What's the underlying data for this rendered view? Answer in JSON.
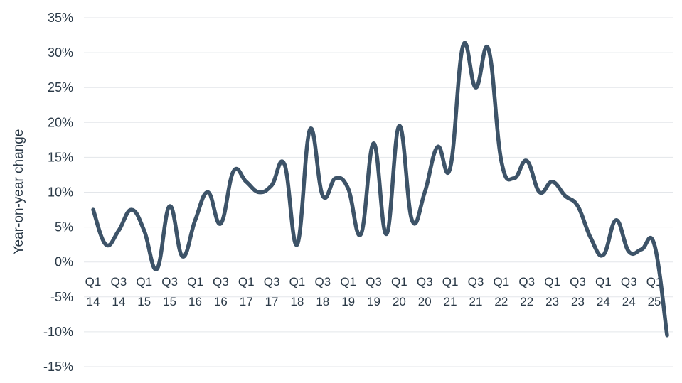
{
  "chart_data": {
    "type": "line",
    "ylabel": "Year-on-year change",
    "ylim": [
      -15,
      35
    ],
    "yticks": [
      35,
      30,
      25,
      20,
      15,
      10,
      5,
      0,
      -5,
      -10,
      -15
    ],
    "ytick_labels": [
      "35%",
      "30%",
      "25%",
      "20%",
      "15%",
      "10%",
      "5%",
      "0%",
      "-5%",
      "-10%",
      "-15%"
    ],
    "grid": true,
    "x_tick_labels": [
      [
        "Q1",
        "14"
      ],
      [
        "Q3",
        "14"
      ],
      [
        "Q1",
        "15"
      ],
      [
        "Q3",
        "15"
      ],
      [
        "Q1",
        "16"
      ],
      [
        "Q3",
        "16"
      ],
      [
        "Q1",
        "17"
      ],
      [
        "Q3",
        "17"
      ],
      [
        "Q1",
        "18"
      ],
      [
        "Q3",
        "18"
      ],
      [
        "Q1",
        "19"
      ],
      [
        "Q3",
        "19"
      ],
      [
        "Q1",
        "20"
      ],
      [
        "Q3",
        "20"
      ],
      [
        "Q1",
        "21"
      ],
      [
        "Q3",
        "21"
      ],
      [
        "Q1",
        "22"
      ],
      [
        "Q3",
        "22"
      ],
      [
        "Q1",
        "23"
      ],
      [
        "Q3",
        "23"
      ],
      [
        "Q1",
        "24"
      ],
      [
        "Q3",
        "24"
      ],
      [
        "Q1",
        "25"
      ]
    ],
    "x": [
      "Q1 14",
      "Q2 14",
      "Q3 14",
      "Q4 14",
      "Q1 15",
      "Q2 15",
      "Q3 15",
      "Q4 15",
      "Q1 16",
      "Q2 16",
      "Q3 16",
      "Q4 16",
      "Q1 17",
      "Q2 17",
      "Q3 17",
      "Q4 17",
      "Q1 18",
      "Q2 18",
      "Q3 18",
      "Q4 18",
      "Q1 19",
      "Q2 19",
      "Q3 19",
      "Q4 19",
      "Q1 20",
      "Q2 20",
      "Q3 20",
      "Q4 20",
      "Q1 21",
      "Q2 21",
      "Q3 21",
      "Q4 21",
      "Q1 22",
      "Q2 22",
      "Q3 22",
      "Q4 22",
      "Q1 23",
      "Q2 23",
      "Q3 23",
      "Q4 23",
      "Q1 24",
      "Q2 24",
      "Q3 24",
      "Q4 24",
      "Q1 25",
      "Q2 25"
    ],
    "series": [
      {
        "color": "#3d5368",
        "values": [
          7.5,
          2.5,
          4.5,
          7.5,
          4.5,
          -1.0,
          8.0,
          0.8,
          6.0,
          10.0,
          5.5,
          13.0,
          11.5,
          10.0,
          11.0,
          14.0,
          2.5,
          19.0,
          9.5,
          12.0,
          10.5,
          4.0,
          17.0,
          4.0,
          19.5,
          6.0,
          10.0,
          16.5,
          13.5,
          31.0,
          25.0,
          30.5,
          14.5,
          12.0,
          14.5,
          10.0,
          11.5,
          9.5,
          8.0,
          3.5,
          1.0,
          6.0,
          1.5,
          1.8,
          2.5,
          -10.5
        ]
      }
    ]
  }
}
